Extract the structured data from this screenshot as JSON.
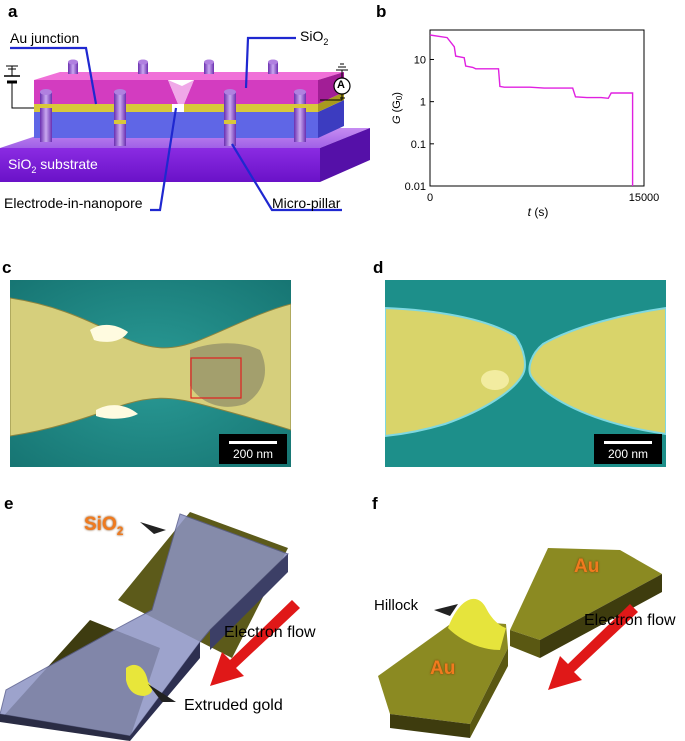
{
  "panels": {
    "a": {
      "letter": "a",
      "labels": {
        "au_junction": "Au junction",
        "sio2_top": "SiO",
        "sio2_top_sub": "2",
        "substrate": "SiO",
        "substrate_sub": "2",
        "substrate_tail": " substrate",
        "electrode": "Electrode-in-nanopore",
        "micropillar": "Micro-pillar",
        "ammeter": "A"
      }
    },
    "b": {
      "letter": "b"
    },
    "c": {
      "letter": "c",
      "scale": "200 nm"
    },
    "d": {
      "letter": "d",
      "scale": "200 nm"
    },
    "e": {
      "letter": "e",
      "labels": {
        "sio2": "SiO",
        "sio2_sub": "2",
        "electron_flow": "Electron flow",
        "extruded": "Extruded gold"
      }
    },
    "f": {
      "letter": "f",
      "labels": {
        "au_top": "Au",
        "au_bottom": "Au",
        "hillock": "Hillock",
        "electron_flow": "Electron flow"
      }
    }
  },
  "chart_data": {
    "type": "line",
    "title": "",
    "xlabel_italic": "t",
    "xlabel_unit": " (s)",
    "ylabel_italic": "G",
    "ylabel_unit": " (G",
    "ylabel_sub": "0",
    "ylabel_close": ")",
    "xlim": [
      0,
      15000
    ],
    "ylim": [
      0.01,
      50
    ],
    "yscale": "log",
    "xticks": [
      {
        "value": 0,
        "label": "0"
      },
      {
        "value": 15000,
        "label": "15000"
      }
    ],
    "yticks": [
      {
        "value": 10,
        "label": "10"
      },
      {
        "value": 1,
        "label": "1"
      },
      {
        "value": 0.1,
        "label": "0.1"
      },
      {
        "value": 0.01,
        "label": "0.01"
      }
    ],
    "color": "#e020e0",
    "series": [
      {
        "x": [
          0,
          1200,
          1700,
          1800,
          2400,
          2500,
          3000,
          3200,
          4000,
          4800,
          4900,
          5200,
          6000,
          7000,
          8000,
          9000,
          10000,
          10200,
          11000,
          12000,
          12500,
          12700,
          13500,
          14100,
          14200,
          14200
        ],
        "y": [
          38,
          33,
          20,
          12,
          11,
          7,
          6.5,
          6,
          6,
          6,
          2.3,
          2.2,
          2.2,
          2.2,
          2.1,
          2.1,
          2.1,
          1.3,
          1.25,
          1.25,
          1.2,
          1.6,
          1.6,
          1.6,
          1.6,
          0.01
        ]
      }
    ]
  }
}
